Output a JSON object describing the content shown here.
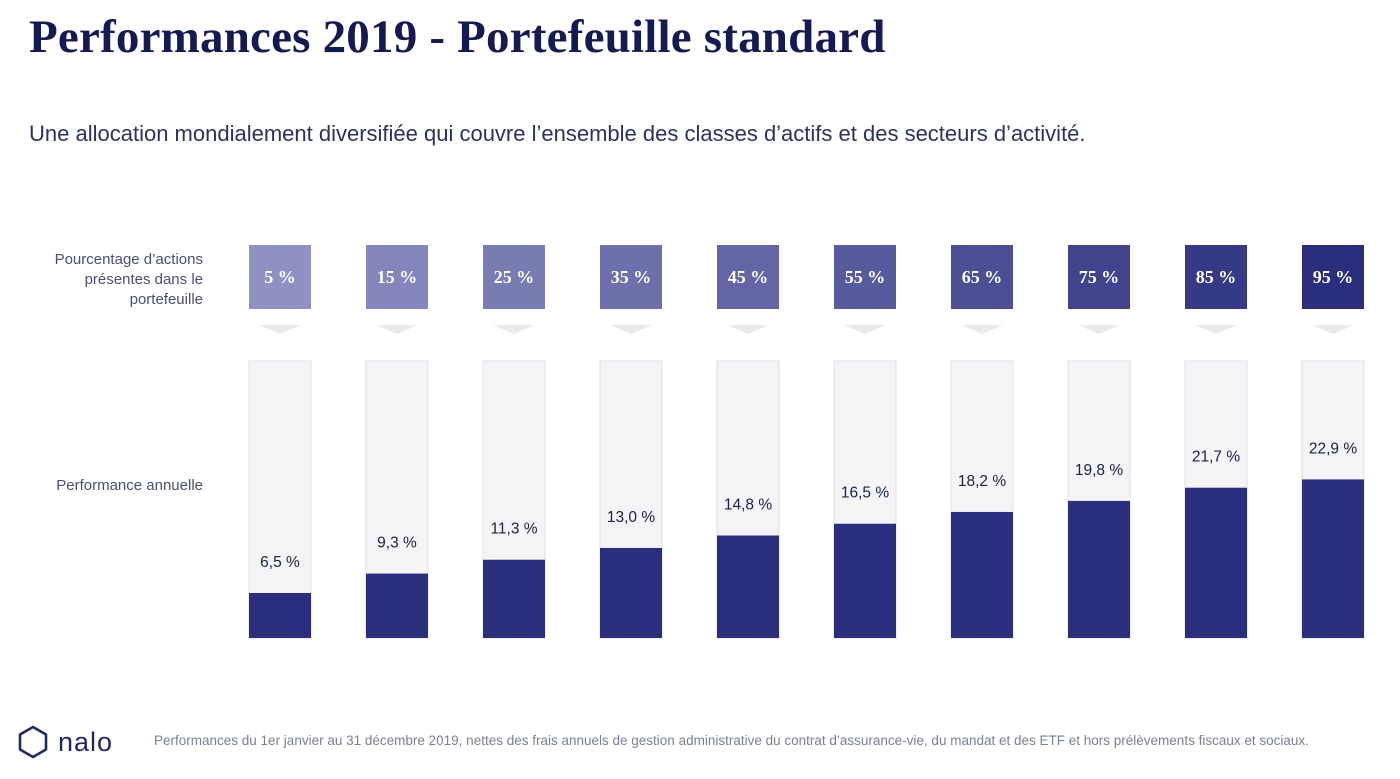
{
  "title": "Performances 2019 - Portefeuille standard",
  "subtitle": "Une allocation mondialement diversifiée qui couvre l’ensemble des classes d’actifs et des secteurs d’activité.",
  "row_labels": {
    "equity_share": "Pourcentage d’actions présentes dans le portefeuille",
    "annual_performance": "Performance annuelle"
  },
  "footer_note": "Performances du 1er janvier au 31 décembre 2019, nettes des frais annuels de gestion administrative du contrat d’assurance-vie, du mandat et des ETF et hors prélèvements fiscaux et sociaux.",
  "brand": {
    "name": "nalo",
    "icon": "hexagon-logo-icon"
  },
  "colors": {
    "bar_fill": "#2b2e7d",
    "track_fill": "#f4f4f6",
    "box_light": "#8f91c3",
    "box_dark": "#2b2e7d",
    "chevron": "#e9e9ee"
  },
  "chart_data": {
    "type": "bar",
    "title": "Performances 2019 - Portefeuille standard",
    "categories": [
      "5 %",
      "15 %",
      "25 %",
      "35 %",
      "45 %",
      "55 %",
      "65 %",
      "75 %",
      "85 %",
      "95 %"
    ],
    "series": [
      {
        "name": "Performance annuelle",
        "values": [
          6.5,
          9.3,
          11.3,
          13.0,
          14.8,
          16.5,
          18.2,
          19.8,
          21.7,
          22.9
        ]
      }
    ],
    "value_labels": [
      "6,5 %",
      "9,3 %",
      "11,3 %",
      "13,0 %",
      "14,8 %",
      "16,5 %",
      "18,2 %",
      "19,8 %",
      "21,7 %",
      "22,9 %"
    ],
    "xlabel": "Pourcentage d’actions présentes dans le portefeuille",
    "ylabel": "Performance annuelle",
    "ylim": [
      0,
      40
    ]
  }
}
